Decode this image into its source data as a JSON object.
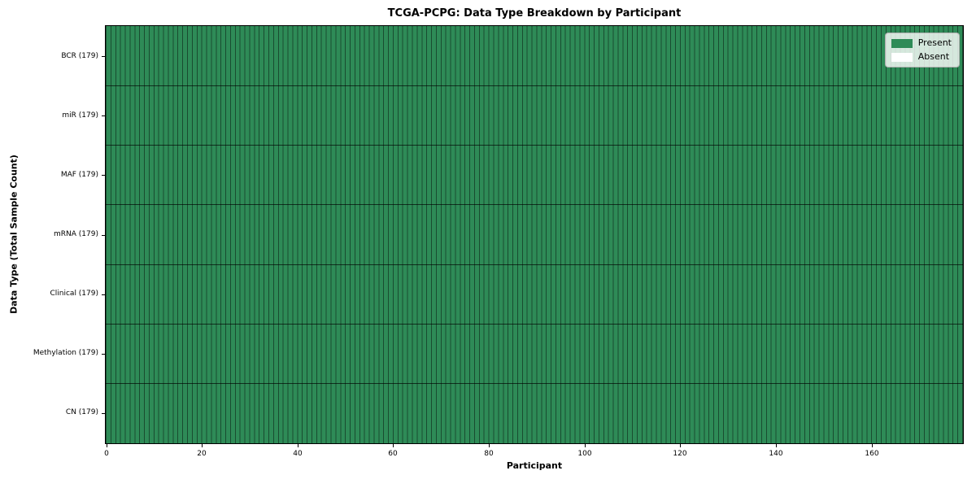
{
  "chart_data": {
    "type": "heatmap",
    "title": "TCGA-PCPG: Data Type Breakdown by Participant",
    "xlabel": "Participant",
    "ylabel": "Data Type (Total Sample Count)",
    "n_participants": 179,
    "x_range": [
      0,
      179
    ],
    "x_ticks": [
      0,
      20,
      40,
      60,
      80,
      100,
      120,
      140,
      160
    ],
    "rows": [
      {
        "label": "BCR (179)",
        "present_count": 179,
        "absent_count": 0
      },
      {
        "label": "miR (179)",
        "present_count": 179,
        "absent_count": 0
      },
      {
        "label": "MAF (179)",
        "present_count": 179,
        "absent_count": 0
      },
      {
        "label": "mRNA (179)",
        "present_count": 179,
        "absent_count": 0
      },
      {
        "label": "Clinical (179)",
        "present_count": 179,
        "absent_count": 0
      },
      {
        "label": "Methylation (179)",
        "present_count": 179,
        "absent_count": 0
      },
      {
        "label": "CN (179)",
        "present_count": 179,
        "absent_count": 0
      }
    ],
    "cell_note": "every cell in all 7 rows x 179 participant columns is Present",
    "colors": {
      "present": "#2e8b57",
      "absent": "#ffffff",
      "cell_edge": "rgba(0,0,0,0.45)",
      "row_separator": "rgba(0,0,0,0.65)"
    },
    "legend": [
      {
        "label": "Present",
        "color": "#2e8b57"
      },
      {
        "label": "Absent",
        "color": "#ffffff"
      }
    ],
    "legend_position": "upper right",
    "grid": "cell edge lines only, no axis grid"
  }
}
